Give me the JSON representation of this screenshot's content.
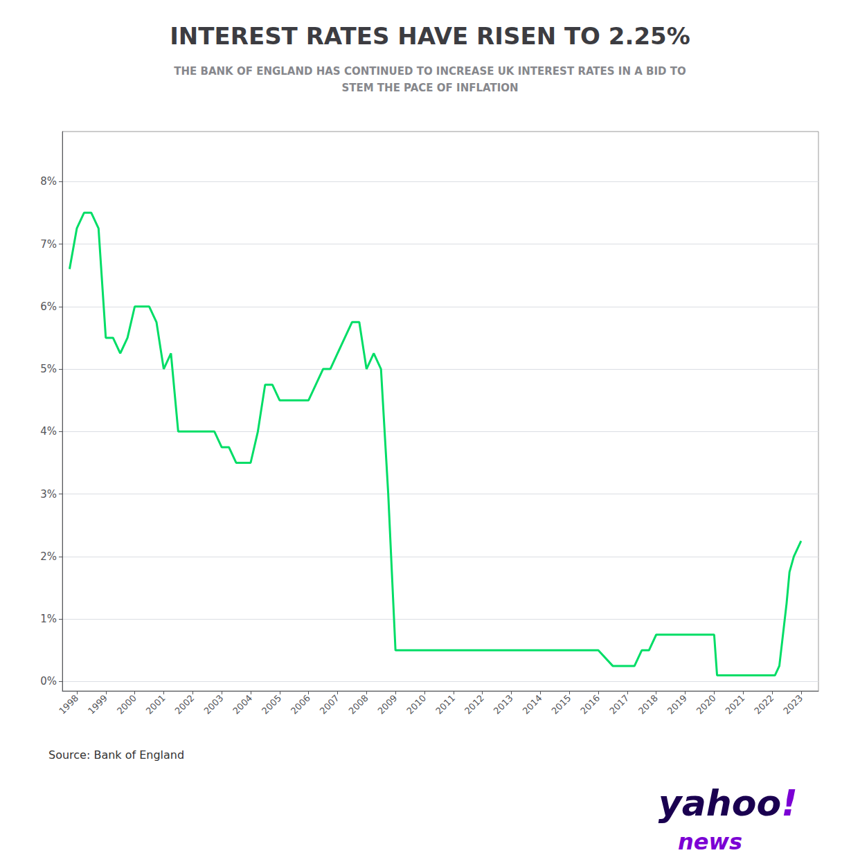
{
  "chart_data": {
    "type": "line",
    "title": "INTEREST RATES HAVE RISEN TO 2.25%",
    "subtitle": "THE BANK OF ENGLAND HAS CONTINUED TO INCREASE UK INTEREST RATES IN A BID TO\nSTEM THE PACE OF INFLATION",
    "annotations": [
      {
        "text": "Source: Bank of England"
      },
      {
        "text": "yahoo",
        "color": "#1a0050"
      },
      {
        "text": "!",
        "color": "#7B00D4"
      },
      {
        "text": "news",
        "color": "#7B00D4"
      }
    ],
    "color": "#00dd66",
    "x": [
      1997.75,
      1998.0,
      1998.25,
      1998.5,
      1998.75,
      1999.0,
      1999.25,
      1999.5,
      1999.75,
      2000.0,
      2000.25,
      2000.5,
      2000.75,
      2001.0,
      2001.25,
      2001.5,
      2001.75,
      2002.0,
      2002.25,
      2002.5,
      2002.75,
      2003.0,
      2003.25,
      2003.5,
      2003.75,
      2004.0,
      2004.25,
      2004.5,
      2004.75,
      2005.0,
      2005.25,
      2005.5,
      2005.75,
      2006.0,
      2006.25,
      2006.5,
      2006.75,
      2007.0,
      2007.25,
      2007.5,
      2007.75,
      2008.0,
      2008.25,
      2008.5,
      2008.75,
      2009.0,
      2009.25,
      2009.5,
      2009.75,
      2010.0,
      2011.0,
      2012.0,
      2013.0,
      2014.0,
      2015.0,
      2016.0,
      2016.5,
      2017.0,
      2017.25,
      2017.5,
      2017.75,
      2018.0,
      2018.25,
      2018.5,
      2018.75,
      2019.0,
      2019.25,
      2019.5,
      2019.75,
      2020.0,
      2020.1,
      2020.25,
      2020.5,
      2020.75,
      2021.0,
      2021.25,
      2021.5,
      2021.75,
      2022.0,
      2022.1,
      2022.25,
      2022.5,
      2022.6,
      2022.75,
      2023.0
    ],
    "values": [
      6.6,
      7.25,
      7.5,
      7.5,
      7.25,
      5.5,
      5.5,
      5.25,
      5.5,
      6.0,
      6.0,
      6.0,
      5.75,
      5.0,
      5.25,
      4.0,
      4.0,
      4.0,
      4.0,
      4.0,
      4.0,
      3.75,
      3.75,
      3.5,
      3.5,
      3.5,
      4.0,
      4.75,
      4.75,
      4.5,
      4.5,
      4.5,
      4.5,
      4.5,
      4.75,
      5.0,
      5.0,
      5.25,
      5.5,
      5.75,
      5.75,
      5.0,
      5.25,
      5.0,
      3.0,
      0.5,
      0.5,
      0.5,
      0.5,
      0.5,
      0.5,
      0.5,
      0.5,
      0.5,
      0.5,
      0.5,
      0.25,
      0.25,
      0.25,
      0.5,
      0.5,
      0.75,
      0.75,
      0.75,
      0.75,
      0.75,
      0.75,
      0.75,
      0.75,
      0.75,
      0.1,
      0.1,
      0.1,
      0.1,
      0.1,
      0.1,
      0.1,
      0.1,
      0.1,
      0.1,
      0.25,
      1.25,
      1.75,
      2.0,
      2.25
    ],
    "xlim": [
      1997.5,
      2023.6
    ],
    "xticks": [
      1998,
      1999,
      2000,
      2001,
      2002,
      2003,
      2004,
      2005,
      2006,
      2007,
      2008,
      2009,
      2010,
      2011,
      2012,
      2013,
      2014,
      2015,
      2016,
      2017,
      2018,
      2019,
      2020,
      2021,
      2022,
      2023
    ],
    "ylim": [
      -0.15,
      8.8
    ],
    "yticks": [
      {
        "value": 0,
        "label": "0%"
      },
      {
        "value": 1,
        "label": "1%"
      },
      {
        "value": 2,
        "label": "2%"
      },
      {
        "value": 3,
        "label": "3%"
      },
      {
        "value": 4,
        "label": "4%"
      },
      {
        "value": 5,
        "label": "5%"
      },
      {
        "value": 6,
        "label": "6%"
      },
      {
        "value": 7,
        "label": "7%"
      },
      {
        "value": 8,
        "label": "8%"
      }
    ],
    "grid": true
  }
}
